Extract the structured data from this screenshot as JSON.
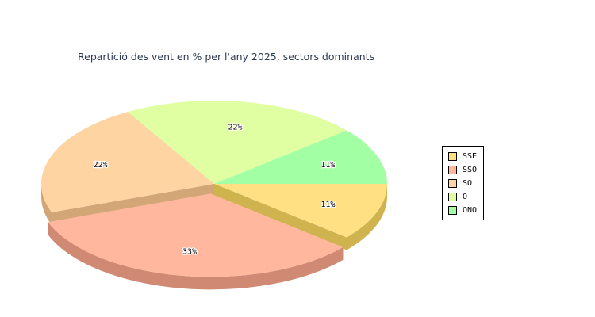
{
  "chart_data": {
    "type": "pie",
    "title": "Repartició des vent en % per l'any 2025, sectors dominants",
    "legend_position": "right",
    "slices": [
      {
        "name": "SSE",
        "value": 11,
        "label": "11%",
        "color": "#ffe083",
        "side_color": "#cfb34f",
        "exploded": false
      },
      {
        "name": "SSO",
        "value": 33,
        "label": "33%",
        "color": "#ffb89e",
        "side_color": "#d08a74",
        "exploded": true
      },
      {
        "name": "SO",
        "value": 22,
        "label": "22%",
        "color": "#ffd4a3",
        "side_color": "#d2a677",
        "exploded": false
      },
      {
        "name": "O",
        "value": 22,
        "label": "22%",
        "color": "#e0ffa3",
        "side_color": "#b3cc7f",
        "exploded": false
      },
      {
        "name": "ONO",
        "value": 11,
        "label": "11%",
        "color": "#a3ffa3",
        "side_color": "#7fcc7f",
        "exploded": false
      }
    ]
  }
}
